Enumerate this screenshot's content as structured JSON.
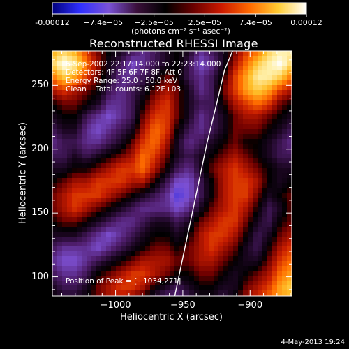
{
  "colorbar": {
    "tick_labels": [
      "-0.00012",
      "−7.4e−05",
      "−2.5e−05",
      "2.5e−05",
      "7.4e−05",
      "0.00012"
    ],
    "units": "(photons cm⁻² s⁻¹ asec⁻²)",
    "range": [
      -0.00012,
      0.00012
    ],
    "colormap": [
      "#000080",
      "#3030ff",
      "#7a52d6",
      "#3a0f3a",
      "#000000",
      "#6a0000",
      "#cc1a00",
      "#ff6a00",
      "#ffcc33",
      "#ffffff"
    ]
  },
  "annotations": {
    "line1": "6-Sep-2002 22:17:14.000 to 22:23:14.000",
    "line2": "Detectors: 4F 5F 6F 7F 8F, Att 0",
    "line3": "Energy Range: 25.0 - 50.0 keV",
    "line4": "Clean    Total counts: 6.12E+03",
    "peak": "Position of Peak = [−1034,271]"
  },
  "footer": {
    "date": "4-May-2013 19:24"
  },
  "chart_data": {
    "type": "heatmap",
    "title": "Reconstructed RHESSI Image",
    "xlabel": "Heliocentric X (arcsec)",
    "ylabel": "Heliocentric Y (arcsec)",
    "xlim": [
      -1047,
      -869
    ],
    "ylim": [
      85,
      277
    ],
    "x_ticks": [
      -1000,
      -950,
      -900
    ],
    "x_tick_labels": [
      "−1000",
      "−950",
      "−900"
    ],
    "y_ticks": [
      100,
      150,
      200,
      250
    ],
    "y_tick_labels": [
      "100",
      "150",
      "200",
      "250"
    ],
    "peak_position": [
      -1034,
      271
    ],
    "limb_curve": {
      "x": [
        -956,
        -950,
        -941,
        -932,
        -925,
        -919,
        -913
      ],
      "y": [
        85,
        115,
        160,
        205,
        235,
        262,
        277
      ]
    },
    "intensity_grid": [
      [
        5,
        6,
        5,
        3,
        1,
        0,
        -1,
        -2,
        -3,
        -2,
        -1,
        0,
        -1,
        -3,
        -2,
        -1,
        1,
        3,
        4,
        6,
        7,
        7
      ],
      [
        6,
        8,
        7,
        4,
        2,
        -1,
        -2,
        -4,
        -3,
        -2,
        -1,
        0,
        -2,
        -4,
        -3,
        -1,
        2,
        4,
        6,
        7,
        8,
        6
      ],
      [
        4,
        6,
        5,
        3,
        1,
        -1,
        -3,
        -3,
        -2,
        -1,
        1,
        0,
        -2,
        -3,
        -2,
        0,
        3,
        5,
        7,
        7,
        6,
        4
      ],
      [
        2,
        3,
        2,
        1,
        0,
        -2,
        -3,
        -2,
        -1,
        1,
        2,
        1,
        -1,
        -3,
        -2,
        1,
        3,
        5,
        6,
        5,
        3,
        2
      ],
      [
        0,
        1,
        1,
        0,
        -1,
        -3,
        -3,
        -2,
        0,
        2,
        3,
        1,
        -1,
        -2,
        -2,
        0,
        2,
        3,
        4,
        3,
        1,
        0
      ],
      [
        -1,
        0,
        0,
        -2,
        -3,
        -4,
        -3,
        -2,
        1,
        3,
        3,
        1,
        -1,
        -3,
        -2,
        -1,
        1,
        2,
        2,
        1,
        0,
        -1
      ],
      [
        -2,
        -1,
        -1,
        -3,
        -4,
        -3,
        -2,
        -1,
        2,
        4,
        3,
        0,
        -2,
        -3,
        -2,
        -1,
        1,
        1,
        1,
        0,
        -1,
        -2
      ],
      [
        -3,
        -2,
        -2,
        -3,
        -3,
        -2,
        -1,
        1,
        3,
        4,
        2,
        -1,
        -3,
        -2,
        -1,
        0,
        1,
        0,
        0,
        -1,
        -2,
        -3
      ],
      [
        -2,
        -2,
        -1,
        -2,
        -1,
        0,
        1,
        2,
        4,
        3,
        1,
        -1,
        -2,
        -1,
        0,
        1,
        2,
        1,
        0,
        -1,
        -2,
        -2
      ],
      [
        -1,
        -1,
        0,
        0,
        1,
        2,
        3,
        3,
        4,
        2,
        0,
        -2,
        -3,
        -1,
        1,
        2,
        3,
        2,
        1,
        0,
        -1,
        -1
      ],
      [
        0,
        1,
        2,
        2,
        3,
        3,
        3,
        2,
        2,
        0,
        -2,
        -4,
        -4,
        -2,
        0,
        2,
        3,
        3,
        2,
        0,
        -1,
        0
      ],
      [
        1,
        2,
        3,
        3,
        3,
        2,
        1,
        0,
        -1,
        -2,
        -3,
        -5,
        -4,
        -2,
        0,
        2,
        3,
        3,
        1,
        -1,
        0,
        1
      ],
      [
        1,
        2,
        3,
        2,
        1,
        0,
        -1,
        -2,
        -3,
        -3,
        -3,
        -4,
        -3,
        -1,
        1,
        2,
        3,
        2,
        0,
        -2,
        -1,
        1
      ],
      [
        0,
        1,
        1,
        0,
        -1,
        -2,
        -3,
        -3,
        -2,
        -1,
        -1,
        -2,
        -1,
        1,
        2,
        3,
        3,
        1,
        -1,
        -2,
        0,
        1
      ],
      [
        -1,
        -1,
        -1,
        -2,
        -3,
        -4,
        -3,
        -2,
        -1,
        0,
        0,
        -1,
        0,
        2,
        3,
        3,
        2,
        0,
        -2,
        -1,
        1,
        2
      ],
      [
        -2,
        -3,
        -3,
        -3,
        -4,
        -3,
        -2,
        -1,
        0,
        1,
        1,
        0,
        1,
        2,
        3,
        2,
        1,
        -1,
        -2,
        0,
        2,
        3
      ],
      [
        -3,
        -4,
        -4,
        -3,
        -2,
        -1,
        0,
        1,
        2,
        2,
        2,
        1,
        1,
        2,
        2,
        1,
        0,
        -1,
        -1,
        1,
        3,
        4
      ],
      [
        -2,
        -3,
        -3,
        -2,
        0,
        1,
        2,
        3,
        3,
        2,
        1,
        0,
        0,
        1,
        1,
        0,
        -1,
        0,
        1,
        2,
        4,
        5
      ],
      [
        -1,
        -2,
        -2,
        -1,
        1,
        2,
        3,
        3,
        2,
        0,
        -1,
        -2,
        -1,
        0,
        0,
        -1,
        -1,
        1,
        2,
        3,
        5,
        6
      ],
      [
        0,
        -1,
        -1,
        0,
        1,
        2,
        2,
        1,
        0,
        -2,
        -3,
        -3,
        -2,
        -1,
        -1,
        -2,
        0,
        2,
        3,
        4,
        5,
        5
      ]
    ]
  }
}
